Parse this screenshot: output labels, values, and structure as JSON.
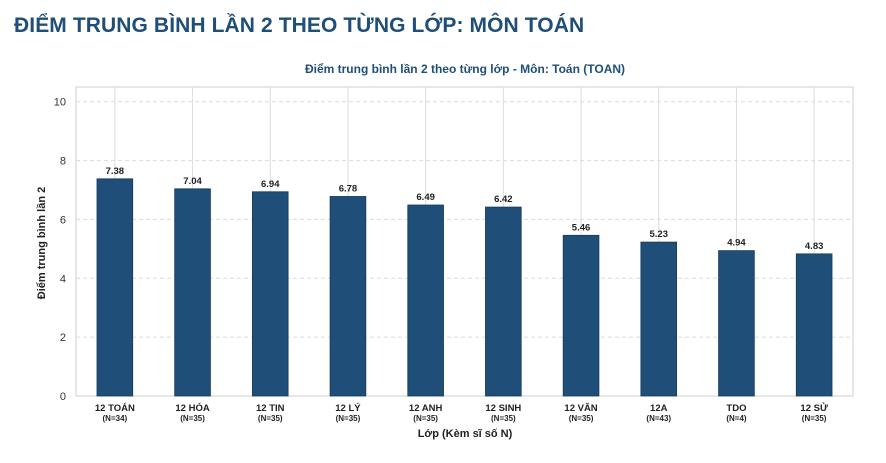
{
  "page": {
    "heading": "ĐIỂM TRUNG BÌNH LẦN 2 THEO TỪNG LỚP: MÔN TOÁN"
  },
  "colors": {
    "heading": "#1f4e79",
    "bar": "#1f4e79",
    "bar_edge": "#163a5a",
    "grid": "#dcdcdc",
    "axis_text": "#333333"
  },
  "chart_data": {
    "type": "bar",
    "title": "Điểm trung bình lần 2 theo từng lớp - Môn: Toán (TOAN)",
    "xlabel": "Lớp (Kèm sĩ số N)",
    "ylabel": "Điểm trung bình lần 2",
    "ylim": [
      0,
      10.5
    ],
    "yticks": [
      0,
      2,
      4,
      6,
      8,
      10
    ],
    "grid": true,
    "categories": [
      {
        "name": "12 TOÁN",
        "n": "(N=34)"
      },
      {
        "name": "12 HÓA",
        "n": "(N=35)"
      },
      {
        "name": "12 TIN",
        "n": "(N=35)"
      },
      {
        "name": "12 LÝ",
        "n": "(N=35)"
      },
      {
        "name": "12 ANH",
        "n": "(N=35)"
      },
      {
        "name": "12 SINH",
        "n": "(N=35)"
      },
      {
        "name": "12 VĂN",
        "n": "(N=35)"
      },
      {
        "name": "12A",
        "n": "(N=43)"
      },
      {
        "name": "TDO",
        "n": "(N=4)"
      },
      {
        "name": "12 SỬ",
        "n": "(N=35)"
      }
    ],
    "values": [
      7.38,
      7.04,
      6.94,
      6.78,
      6.49,
      6.42,
      5.46,
      5.23,
      4.94,
      4.83
    ],
    "value_labels": [
      "7.38",
      "7.04",
      "6.94",
      "6.78",
      "6.49",
      "6.42",
      "5.46",
      "5.23",
      "4.94",
      "4.83"
    ]
  }
}
